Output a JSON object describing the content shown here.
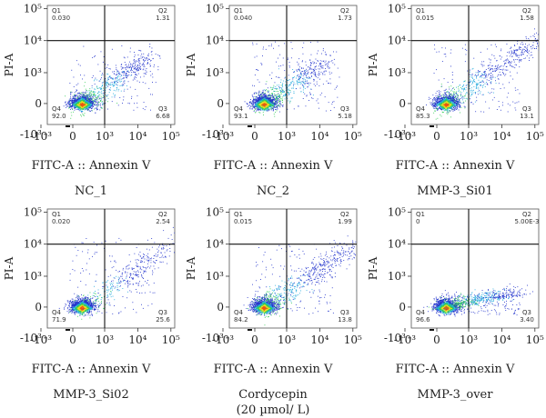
{
  "chart_data": [
    {
      "type": "scatter",
      "title": "NC_1",
      "xlabel": "FITC-A :: Annexin V",
      "ylabel": "PI-A",
      "x_ticks": [
        "-10³",
        "0",
        "10³",
        "10⁴",
        "10⁵"
      ],
      "y_ticks": [
        "10⁵",
        "10⁴",
        "10³",
        "0",
        "-10³"
      ],
      "quadrants": {
        "q1": {
          "name": "Q1",
          "value": "0.030"
        },
        "q2": {
          "name": "Q2",
          "value": "1.31"
        },
        "q3": {
          "name": "Q3",
          "value": "6.68"
        },
        "q4": {
          "name": "Q4",
          "value": "92.0"
        }
      },
      "gate": {
        "x": 1000,
        "y": 10000
      }
    },
    {
      "type": "scatter",
      "title": "NC_2",
      "xlabel": "FITC-A :: Annexin V",
      "ylabel": "PI-A",
      "x_ticks": [
        "-10³",
        "0",
        "10³",
        "10⁴",
        "10⁵"
      ],
      "y_ticks": [
        "10⁵",
        "10⁴",
        "10³",
        "0",
        "-10³"
      ],
      "quadrants": {
        "q1": {
          "name": "Q1",
          "value": "0.040"
        },
        "q2": {
          "name": "Q2",
          "value": "1.73"
        },
        "q3": {
          "name": "Q3",
          "value": "5.18"
        },
        "q4": {
          "name": "Q4",
          "value": "93.1"
        }
      },
      "gate": {
        "x": 1000,
        "y": 10000
      }
    },
    {
      "type": "scatter",
      "title": "MMP-3_Si01",
      "xlabel": "FITC-A :: Annexin V",
      "ylabel": "PI-A",
      "x_ticks": [
        "-10³",
        "0",
        "10³",
        "10⁴",
        "10⁵"
      ],
      "y_ticks": [
        "10⁵",
        "10⁴",
        "10³",
        "0",
        "-10³"
      ],
      "quadrants": {
        "q1": {
          "name": "Q1",
          "value": "0.015"
        },
        "q2": {
          "name": "Q2",
          "value": "1.58"
        },
        "q3": {
          "name": "Q3",
          "value": "13.1"
        },
        "q4": {
          "name": "Q4",
          "value": "85.3"
        }
      },
      "gate": {
        "x": 1000,
        "y": 10000
      }
    },
    {
      "type": "scatter",
      "title": "MMP-3_Si02",
      "xlabel": "FITC-A :: Annexin V",
      "ylabel": "PI-A",
      "x_ticks": [
        "-10³",
        "0",
        "10³",
        "10⁴",
        "10⁵"
      ],
      "y_ticks": [
        "10⁵",
        "10⁴",
        "10³",
        "0",
        "-10³"
      ],
      "quadrants": {
        "q1": {
          "name": "Q1",
          "value": "0.020"
        },
        "q2": {
          "name": "Q2",
          "value": "2.54"
        },
        "q3": {
          "name": "Q3",
          "value": "25.6"
        },
        "q4": {
          "name": "Q4",
          "value": "71.9"
        }
      },
      "gate": {
        "x": 1000,
        "y": 10000
      }
    },
    {
      "type": "scatter",
      "title": "Cordycepin",
      "subtitle": "(20 µmol/ L)",
      "xlabel": "FITC-A :: Annexin V",
      "ylabel": "PI-A",
      "x_ticks": [
        "-10³",
        "0",
        "10³",
        "10⁴",
        "10⁵"
      ],
      "y_ticks": [
        "10⁵",
        "10⁴",
        "10³",
        "0",
        "-10³"
      ],
      "quadrants": {
        "q1": {
          "name": "Q1",
          "value": "0.015"
        },
        "q2": {
          "name": "Q2",
          "value": "1.99"
        },
        "q3": {
          "name": "Q3",
          "value": "13.8"
        },
        "q4": {
          "name": "Q4",
          "value": "84.2"
        }
      },
      "gate": {
        "x": 1000,
        "y": 10000
      }
    },
    {
      "type": "scatter",
      "title": "MMP-3_over",
      "xlabel": "FITC-A :: Annexin V",
      "ylabel": "PI-A",
      "x_ticks": [
        "-10³",
        "0",
        "10³",
        "10⁴",
        "10⁵"
      ],
      "y_ticks": [
        "10⁵",
        "10⁴",
        "10³",
        "0",
        "-10³"
      ],
      "quadrants": {
        "q1": {
          "name": "Q1",
          "value": "0"
        },
        "q2": {
          "name": "Q2",
          "value": "5.00E-3"
        },
        "q3": {
          "name": "Q3",
          "value": "3.40"
        },
        "q4": {
          "name": "Q4",
          "value": "96.6"
        }
      },
      "gate": {
        "x": 1000,
        "y": 10000
      }
    }
  ],
  "palette": {
    "density_low": "#2233cc",
    "density_mid1": "#22aadd",
    "density_mid2": "#33cc55",
    "density_mid3": "#eedd22",
    "density_high": "#ee5511",
    "gate_line": "#111111"
  }
}
